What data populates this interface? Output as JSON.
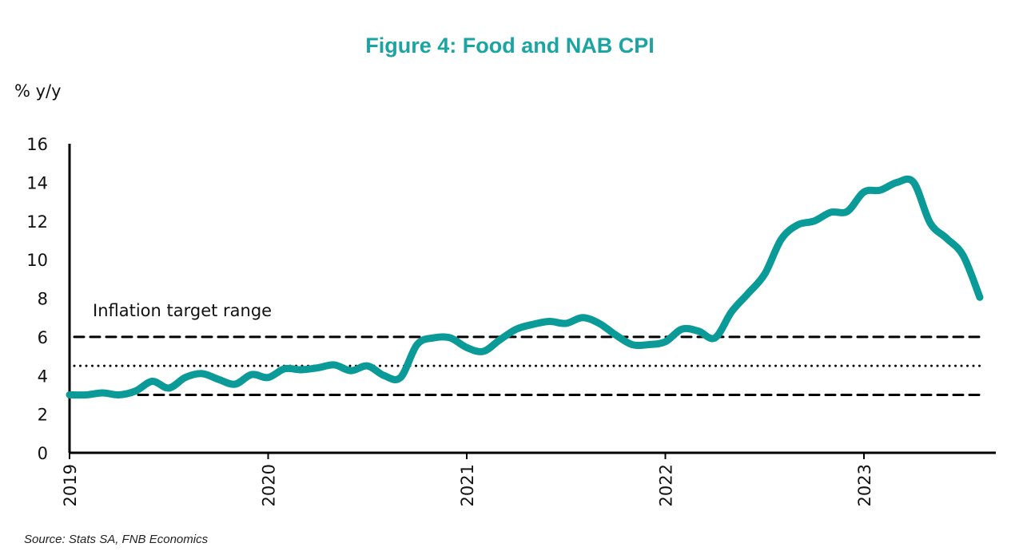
{
  "chart_data": {
    "type": "line",
    "title": "Figure 4: Food and NAB CPI",
    "ylabel": "% y/y",
    "xlabel": "",
    "ylim": [
      0,
      16
    ],
    "yticks": [
      0,
      2,
      4,
      6,
      8,
      10,
      12,
      14,
      16
    ],
    "xticks": [
      "2019",
      "2020",
      "2021",
      "2022",
      "2023"
    ],
    "xlim": [
      "2019-01",
      "2023-09"
    ],
    "grid": false,
    "annotation": "Inflation target range",
    "reference_lines": [
      {
        "value": 6,
        "style": "dashed"
      },
      {
        "value": 4.5,
        "style": "dotted"
      },
      {
        "value": 3,
        "style": "dashed"
      }
    ],
    "source": "Source: Stats SA, FNB Economics",
    "colors": {
      "line": "#0a9a97",
      "title": "#1aa5a2"
    },
    "series": [
      {
        "start": "2019-01",
        "frequency": "monthly",
        "values": [
          3.0,
          3.0,
          3.1,
          3.0,
          3.2,
          3.7,
          3.35,
          3.9,
          4.1,
          3.8,
          3.55,
          4.05,
          3.9,
          4.35,
          4.3,
          4.4,
          4.55,
          4.25,
          4.5,
          4.0,
          3.9,
          5.6,
          5.95,
          5.95,
          5.45,
          5.25,
          5.85,
          6.4,
          6.65,
          6.8,
          6.7,
          7.0,
          6.7,
          6.1,
          5.6,
          5.6,
          5.75,
          6.4,
          6.3,
          5.95,
          7.3,
          8.25,
          9.25,
          11.05,
          11.8,
          12.0,
          12.45,
          12.5,
          13.5,
          13.6,
          14.0,
          14.0,
          11.9,
          11.1,
          10.2,
          8.05
        ]
      }
    ]
  }
}
